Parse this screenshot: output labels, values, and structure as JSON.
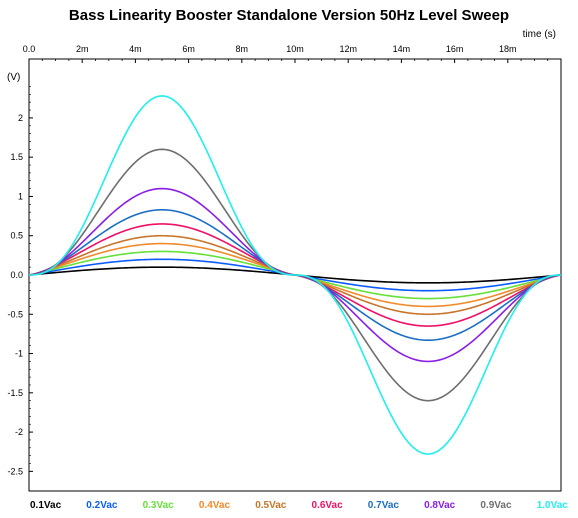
{
  "chart_data": {
    "type": "line",
    "title": "Bass Linearity Booster Standalone Version 50Hz Level Sweep",
    "xlabel": "time  (s)",
    "ylabel": "(V)",
    "xlim": [
      0,
      20
    ],
    "ylim": [
      -2.75,
      2.75
    ],
    "x_ticks": [
      0,
      2,
      4,
      6,
      8,
      10,
      12,
      14,
      16,
      18
    ],
    "x_tick_labels": [
      "0.0",
      "2m",
      "4m",
      "6m",
      "8m",
      "10m",
      "12m",
      "14m",
      "16m",
      "18m"
    ],
    "y_ticks": [
      2,
      1.5,
      1,
      0.5,
      0,
      -0.5,
      -1,
      -1.5,
      -2,
      -2.5
    ],
    "y_tick_labels": [
      "2",
      "1.5",
      "1",
      "0.5",
      "0.0",
      "-0.5",
      "-1",
      "-1.5",
      "-2",
      "-2.5"
    ],
    "x_axis_position": "top",
    "grid": false,
    "legend_position": "bottom",
    "x_unit": "ms",
    "series": [
      {
        "name": "0.1Vac",
        "color": "#000000",
        "peak": 0.1,
        "sharpness": 0.0
      },
      {
        "name": "0.2Vac",
        "color": "#0a5cff",
        "peak": 0.2,
        "sharpness": 0.03
      },
      {
        "name": "0.3Vac",
        "color": "#66e03a",
        "peak": 0.3,
        "sharpness": 0.06
      },
      {
        "name": "0.4Vac",
        "color": "#f08a2a",
        "peak": 0.4,
        "sharpness": 0.1
      },
      {
        "name": "0.5Vac",
        "color": "#c8742a",
        "peak": 0.5,
        "sharpness": 0.14
      },
      {
        "name": "0.6Vac",
        "color": "#ee1166",
        "peak": 0.65,
        "sharpness": 0.2
      },
      {
        "name": "0.7Vac",
        "color": "#1a6fc4",
        "peak": 0.83,
        "sharpness": 0.28
      },
      {
        "name": "0.8Vac",
        "color": "#8a1ee6",
        "peak": 1.1,
        "sharpness": 0.38
      },
      {
        "name": "0.9Vac",
        "color": "#6e6e6e",
        "peak": 1.6,
        "sharpness": 0.52
      },
      {
        "name": "1.0Vac",
        "color": "#22eeee",
        "peak": 2.28,
        "sharpness": 0.68
      }
    ]
  }
}
